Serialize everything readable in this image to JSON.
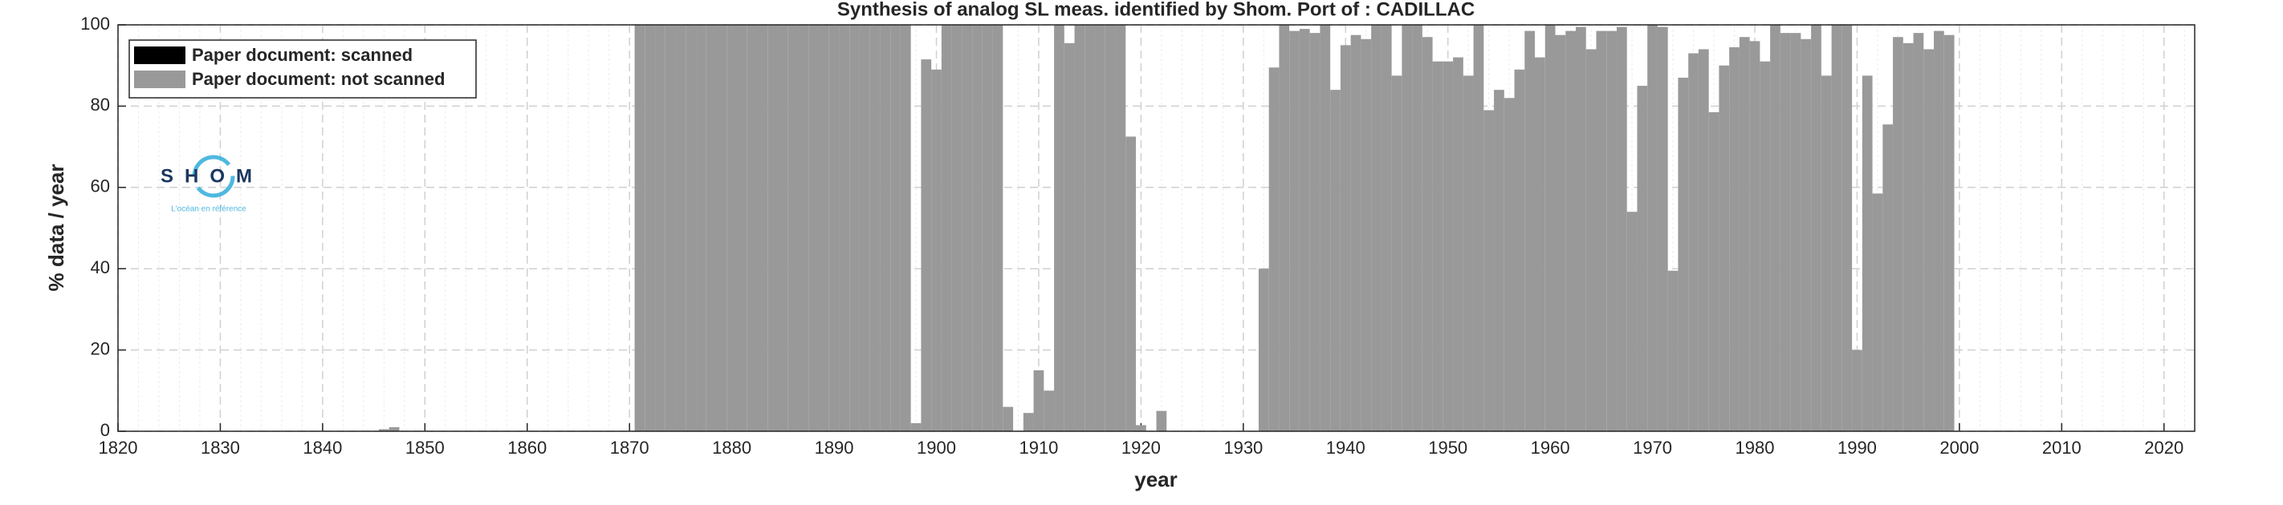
{
  "chart_data": {
    "type": "bar",
    "stacked": true,
    "title": "Synthesis of analog SL meas. identified by Shom. Port of : CADILLAC",
    "xlabel": "year",
    "ylabel": "% data / year",
    "logo": {
      "text": "SHOM",
      "tagline": "L'océan en référence"
    },
    "legend": "upper left",
    "grid": true,
    "xlim": [
      1820,
      2023
    ],
    "ylim": [
      0,
      100
    ],
    "xticks": [
      1820,
      1830,
      1840,
      1850,
      1860,
      1870,
      1880,
      1890,
      1900,
      1910,
      1920,
      1930,
      1940,
      1950,
      1960,
      1970,
      1980,
      1990,
      2000,
      2010,
      2020
    ],
    "yticks": [
      0,
      20,
      40,
      60,
      80,
      100
    ],
    "x": [
      1846,
      1847,
      1848,
      1849,
      1850,
      1851,
      1852,
      1853,
      1854,
      1855,
      1856,
      1857,
      1858,
      1859,
      1860,
      1861,
      1862,
      1863,
      1864,
      1865,
      1866,
      1867,
      1868,
      1869,
      1870,
      1871,
      1872,
      1873,
      1874,
      1875,
      1876,
      1877,
      1878,
      1879,
      1880,
      1881,
      1882,
      1883,
      1884,
      1885,
      1886,
      1887,
      1888,
      1889,
      1890,
      1891,
      1892,
      1893,
      1894,
      1895,
      1896,
      1897,
      1898,
      1899,
      1900,
      1901,
      1902,
      1903,
      1904,
      1905,
      1906,
      1907,
      1908,
      1909,
      1910,
      1911,
      1912,
      1913,
      1914,
      1915,
      1916,
      1917,
      1918,
      1919,
      1920,
      1921,
      1922,
      1923,
      1924,
      1925,
      1926,
      1927,
      1928,
      1929,
      1930,
      1931,
      1932,
      1933,
      1934,
      1935,
      1936,
      1937,
      1938,
      1939,
      1940,
      1941,
      1942,
      1943,
      1944,
      1945,
      1946,
      1947,
      1948,
      1949,
      1950,
      1951,
      1952,
      1953,
      1954,
      1955,
      1956,
      1957,
      1958,
      1959,
      1960,
      1961,
      1962,
      1963,
      1964,
      1965,
      1966,
      1967,
      1968,
      1969,
      1970,
      1971,
      1972,
      1973,
      1974,
      1975,
      1976,
      1977,
      1978,
      1979,
      1980,
      1981,
      1982,
      1983,
      1984,
      1985,
      1986,
      1987,
      1988,
      1989,
      1990,
      1991,
      1992,
      1993,
      1994,
      1995,
      1996,
      1997,
      1998,
      1999
    ],
    "series": [
      {
        "name": "Paper document: scanned",
        "color": "#000000",
        "values": [
          0,
          0,
          0,
          0,
          0,
          0,
          0,
          0,
          0,
          0,
          0,
          0,
          0,
          0,
          0,
          0,
          0,
          0,
          0,
          0,
          0,
          0,
          0,
          0,
          0,
          0,
          0,
          0,
          0,
          0,
          0,
          0,
          0,
          0,
          0,
          0,
          0,
          0,
          0,
          0,
          0,
          0,
          0,
          0,
          0,
          0,
          0,
          0,
          0,
          0,
          0,
          0,
          0,
          0,
          0,
          0,
          0,
          0,
          0,
          0,
          0,
          0,
          0,
          0,
          0,
          0,
          0,
          0,
          0,
          0,
          0,
          0,
          0,
          0,
          0,
          0,
          0,
          0,
          0,
          0,
          0,
          0,
          0,
          0,
          0,
          0,
          0,
          0,
          0,
          0,
          0,
          0,
          0,
          0,
          0,
          0,
          0,
          0,
          0,
          0,
          0,
          0,
          0,
          0,
          0,
          0,
          0,
          0,
          0,
          0,
          0,
          0,
          0,
          0,
          0,
          0,
          0,
          0,
          0,
          0,
          0,
          0,
          0,
          0,
          0,
          0,
          0,
          0,
          0,
          0,
          0,
          0,
          0,
          0,
          0,
          0,
          0,
          0,
          0,
          0,
          0,
          0,
          0,
          0,
          0,
          0,
          0,
          0,
          0,
          0,
          0,
          0,
          0,
          0
        ]
      },
      {
        "name": "Paper document: not scanned",
        "color": "#999999",
        "values": [
          0.5,
          1,
          0,
          0,
          0,
          0,
          0,
          0,
          0,
          0,
          0,
          0,
          0,
          0,
          0,
          0,
          0,
          0,
          0,
          0,
          0,
          0,
          0,
          0,
          0,
          100,
          100,
          100,
          100,
          100,
          100,
          100,
          100,
          100,
          100,
          100,
          100,
          100,
          100,
          100,
          100,
          100,
          100,
          100,
          100,
          100,
          100,
          100,
          100,
          100,
          100,
          100,
          2,
          91.5,
          89,
          100,
          100,
          100,
          100,
          100,
          100,
          6,
          0,
          4.5,
          15,
          10,
          100,
          95.5,
          100,
          100,
          100,
          100,
          100,
          72.5,
          1.5,
          0,
          5,
          0,
          0,
          0,
          0,
          0,
          0,
          0,
          0,
          0,
          40,
          89.5,
          100,
          98.5,
          99,
          98,
          100,
          84,
          95,
          97.5,
          96.5,
          100,
          100,
          87.5,
          100,
          100,
          97,
          91,
          91,
          92,
          87.5,
          100,
          79,
          84,
          82,
          89,
          98.5,
          92,
          100,
          97.5,
          98.5,
          99.5,
          94,
          98.5,
          98.5,
          99.5,
          54,
          85,
          100,
          99.5,
          39.5,
          87,
          93,
          94,
          78.5,
          90,
          94.5,
          97,
          96,
          91,
          100,
          98,
          98,
          96.5,
          100,
          87.5,
          100,
          100,
          20,
          87.5,
          58.5,
          75.5,
          97,
          95.5,
          98,
          94,
          98.5,
          97.5
        ]
      }
    ]
  }
}
